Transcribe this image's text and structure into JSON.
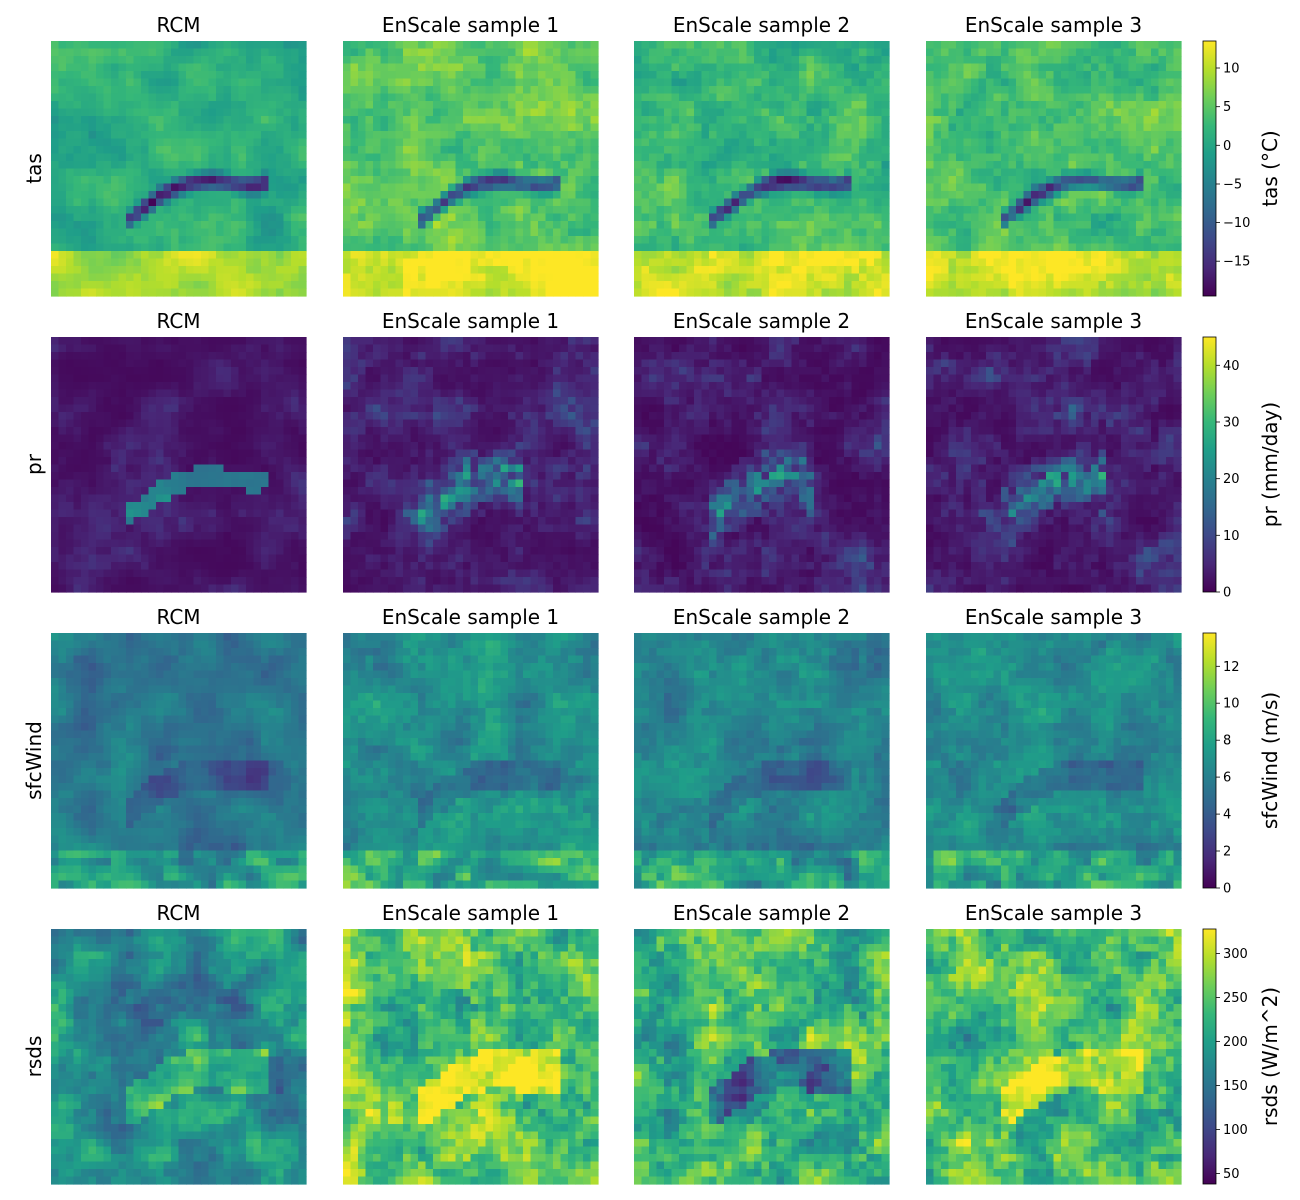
{
  "figure": {
    "column_titles": [
      "RCM",
      "EnScale sample 1",
      "EnScale sample 2",
      "EnScale sample 3"
    ],
    "row_labels": [
      "tas",
      "pr",
      "sfcWind",
      "rsds"
    ]
  },
  "colormap": {
    "name": "viridis",
    "stops": [
      "#440154",
      "#482878",
      "#3e4989",
      "#31688e",
      "#26828e",
      "#1f9e89",
      "#35b779",
      "#6ece58",
      "#b5de2b",
      "#fde725"
    ]
  },
  "chart_data": [
    {
      "type": "heatmap",
      "variable": "tas",
      "row_label": "tas",
      "colorbar": {
        "label": "tas (°C)",
        "vmin": -19.5,
        "vmax": 13.5,
        "ticks": [
          -15,
          -10,
          -5,
          0,
          5,
          10
        ],
        "tick_labels": [
          "−15",
          "−10",
          "−5",
          "0",
          "5",
          "10"
        ]
      },
      "panels": [
        {
          "title": "RCM",
          "mean_level": 0.7
        },
        {
          "title": "EnScale sample 1",
          "mean_level": 0.78
        },
        {
          "title": "EnScale sample 2",
          "mean_level": 0.72
        },
        {
          "title": "EnScale sample 3",
          "mean_level": 0.74
        }
      ]
    },
    {
      "type": "heatmap",
      "variable": "pr",
      "row_label": "pr",
      "colorbar": {
        "label": "pr (mm/day)",
        "vmin": 0,
        "vmax": 45,
        "ticks": [
          0,
          10,
          20,
          30,
          40
        ],
        "tick_labels": [
          "0",
          "10",
          "20",
          "30",
          "40"
        ]
      },
      "panels": [
        {
          "title": "RCM",
          "mean_level": 0.1
        },
        {
          "title": "EnScale sample 1",
          "mean_level": 0.12
        },
        {
          "title": "EnScale sample 2",
          "mean_level": 0.06
        },
        {
          "title": "EnScale sample 3",
          "mean_level": 0.08
        }
      ]
    },
    {
      "type": "heatmap",
      "variable": "sfcWind",
      "row_label": "sfcWind",
      "colorbar": {
        "label": "sfcWind (m/s)",
        "vmin": 0,
        "vmax": 13.8,
        "ticks": [
          0,
          2,
          4,
          6,
          8,
          10,
          12
        ],
        "tick_labels": [
          "0",
          "2",
          "4",
          "6",
          "8",
          "10",
          "12"
        ]
      },
      "panels": [
        {
          "title": "RCM",
          "mean_level": 0.32
        },
        {
          "title": "EnScale sample 1",
          "mean_level": 0.38
        },
        {
          "title": "EnScale sample 2",
          "mean_level": 0.33
        },
        {
          "title": "EnScale sample 3",
          "mean_level": 0.38
        }
      ]
    },
    {
      "type": "heatmap",
      "variable": "rsds",
      "row_label": "rsds",
      "colorbar": {
        "label": "rsds (W/m^2)",
        "vmin": 38,
        "vmax": 328,
        "ticks": [
          50,
          100,
          150,
          200,
          250,
          300
        ],
        "tick_labels": [
          "50",
          "100",
          "150",
          "200",
          "250",
          "300"
        ]
      },
      "panels": [
        {
          "title": "RCM",
          "mean_level": 0.45
        },
        {
          "title": "EnScale sample 1",
          "mean_level": 0.62
        },
        {
          "title": "EnScale sample 2",
          "mean_level": 0.55
        },
        {
          "title": "EnScale sample 3",
          "mean_level": 0.58
        }
      ]
    }
  ]
}
